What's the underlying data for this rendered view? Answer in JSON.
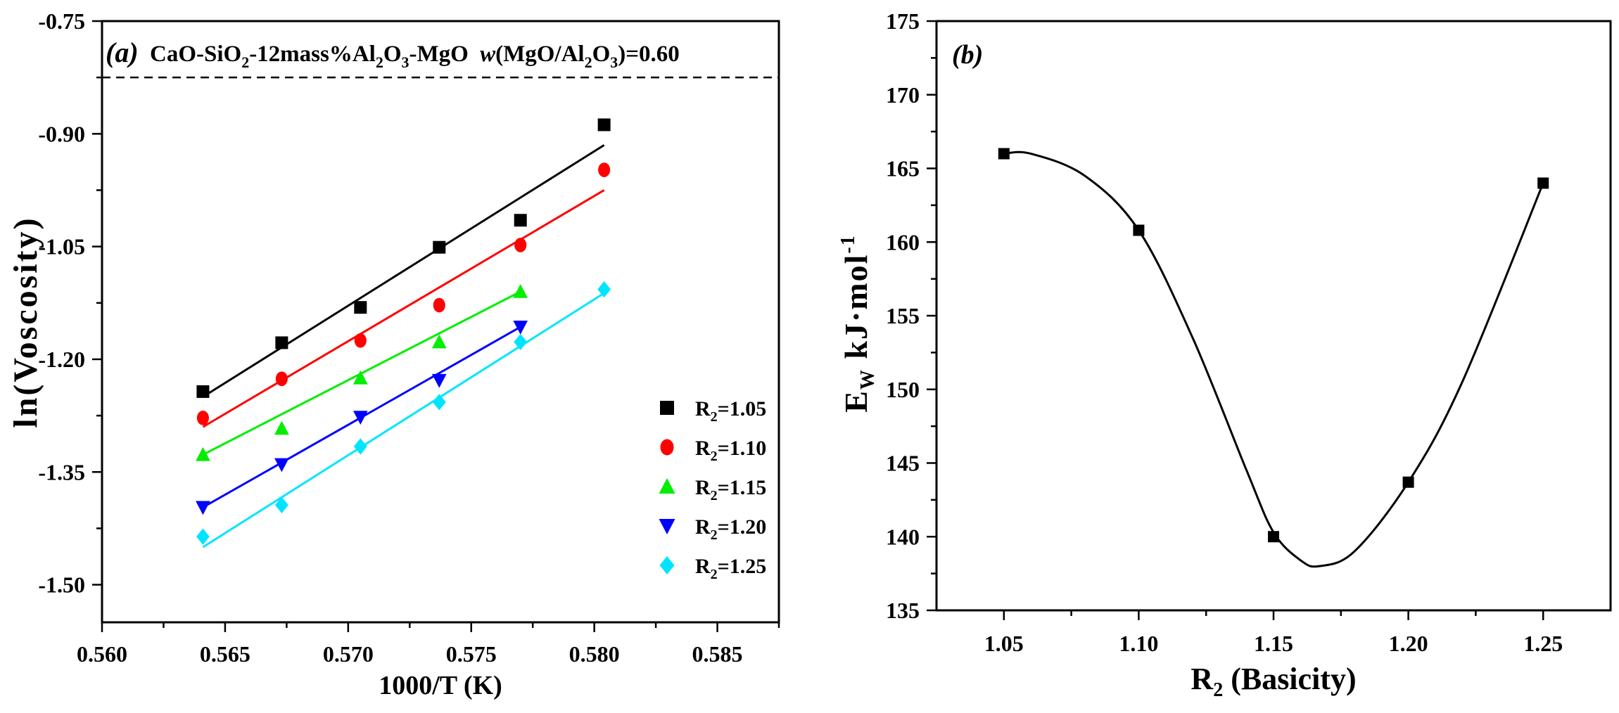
{
  "chart_data": [
    {
      "type": "scatter",
      "panel_label": "(a)",
      "title_parts": {
        "p1": "CaO-SiO",
        "s1": "2",
        "p2": "-12mass%Al",
        "s2": "2",
        "p3": "O",
        "s3": "3",
        "p4": "-MgO ",
        "w": "w",
        "p5": "(MgO/Al",
        "s4": "2",
        "p6": "O",
        "s5": "3",
        "p7": ")=0.60"
      },
      "xlabel": "1000/T (K)",
      "ylabel": "ln(Voscosity)",
      "xlim": [
        0.56,
        0.5875
      ],
      "ylim": [
        -1.55,
        -0.75
      ],
      "reference_line_y": -0.825,
      "xticks": [
        "0.560",
        "0.565",
        "0.570",
        "0.575",
        "0.580",
        "0.585"
      ],
      "xtick_values": [
        0.56,
        0.565,
        0.57,
        0.575,
        0.58,
        0.585
      ],
      "yticks": [
        "-0.75",
        "-0.90",
        "-1.05",
        "-1.20",
        "-1.35",
        "-1.50"
      ],
      "ytick_values": [
        -0.75,
        -0.9,
        -1.05,
        -1.2,
        -1.35,
        -1.5
      ],
      "series": [
        {
          "name": "R2=1.05",
          "name_main": "R",
          "name_sub": "2",
          "name_rest": "=1.05",
          "color": "#000000",
          "marker": "square",
          "x": [
            0.5641,
            0.5673,
            0.5705,
            0.5737,
            0.577,
            0.5804
          ],
          "y": [
            -1.243,
            -1.178,
            -1.131,
            -1.051,
            -1.015,
            -0.888
          ],
          "fit": [
            [
              0.5641,
              -1.25
            ],
            [
              0.5804,
              -0.915
            ]
          ]
        },
        {
          "name": "R2=1.10",
          "name_main": "R",
          "name_sub": "2",
          "name_rest": "=1.10",
          "color": "#ff0000",
          "marker": "circle",
          "x": [
            0.5641,
            0.5673,
            0.5705,
            0.5737,
            0.577,
            0.5804
          ],
          "y": [
            -1.278,
            -1.226,
            -1.175,
            -1.128,
            -1.048,
            -0.948
          ],
          "fit": [
            [
              0.5641,
              -1.29
            ],
            [
              0.5804,
              -0.975
            ]
          ]
        },
        {
          "name": "R2=1.15",
          "name_main": "R",
          "name_sub": "2",
          "name_rest": "=1.15",
          "color": "#00ee00",
          "marker": "triangle-up",
          "x": [
            0.5641,
            0.5673,
            0.5705,
            0.5737,
            0.577
          ],
          "y": [
            -1.327,
            -1.292,
            -1.225,
            -1.177,
            -1.11
          ],
          "fit": [
            [
              0.5641,
              -1.327
            ],
            [
              0.577,
              -1.11
            ]
          ]
        },
        {
          "name": "R2=1.20",
          "name_main": "R",
          "name_sub": "2",
          "name_rest": "=1.20",
          "color": "#0000ff",
          "marker": "triangle-down",
          "x": [
            0.5641,
            0.5673,
            0.5705,
            0.5737,
            0.577
          ],
          "y": [
            -1.397,
            -1.34,
            -1.277,
            -1.228,
            -1.157
          ],
          "fit": [
            [
              0.5641,
              -1.397
            ],
            [
              0.577,
              -1.157
            ]
          ]
        },
        {
          "name": "R2=1.25",
          "name_main": "R",
          "name_sub": "2",
          "name_rest": "=1.25",
          "color": "#00e5ff",
          "marker": "diamond",
          "x": [
            0.5641,
            0.5673,
            0.5705,
            0.5737,
            0.577,
            0.5804
          ],
          "y": [
            -1.436,
            -1.394,
            -1.316,
            -1.257,
            -1.177,
            -1.107
          ],
          "fit": [
            [
              0.5641,
              -1.45
            ],
            [
              0.5804,
              -1.112
            ]
          ]
        }
      ]
    },
    {
      "type": "scatter",
      "panel_label": "(b)",
      "xlabel_main": "R",
      "xlabel_sub": "2",
      "xlabel_rest": " (Basicity)",
      "ylabel_main": "E",
      "ylabel_sub": "W",
      "ylabel_rest": "  kJ·mol",
      "ylabel_sup": "-1",
      "xlim": [
        1.025,
        1.275
      ],
      "ylim": [
        135,
        175
      ],
      "xticks": [
        "1.05",
        "1.10",
        "1.15",
        "1.20",
        "1.25"
      ],
      "xtick_values": [
        1.05,
        1.1,
        1.15,
        1.2,
        1.25
      ],
      "yticks": [
        "135",
        "140",
        "145",
        "150",
        "155",
        "160",
        "165",
        "170",
        "175"
      ],
      "ytick_values": [
        135,
        140,
        145,
        150,
        155,
        160,
        165,
        170,
        175
      ],
      "series": [
        {
          "name": "E_W",
          "color": "#000000",
          "marker": "square",
          "x": [
            1.05,
            1.1,
            1.15,
            1.2,
            1.25
          ],
          "y": [
            166.0,
            160.8,
            140.0,
            143.7,
            164.0
          ]
        }
      ],
      "curve": {
        "x": [
          1.05,
          1.06,
          1.08,
          1.1,
          1.12,
          1.14,
          1.15,
          1.16,
          1.167,
          1.18,
          1.2,
          1.22,
          1.25
        ],
        "y": [
          166.0,
          166.0,
          164.5,
          160.8,
          153.5,
          144.5,
          140.3,
          138.4,
          138.0,
          139.0,
          143.7,
          150.5,
          164.0
        ]
      }
    }
  ]
}
